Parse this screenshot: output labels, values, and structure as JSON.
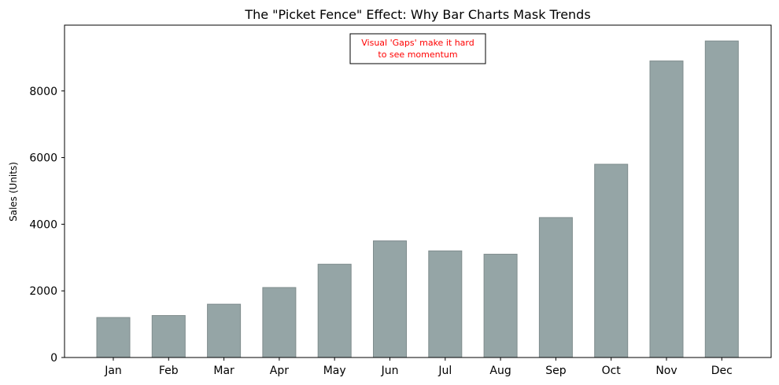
{
  "chart_data": {
    "type": "bar",
    "title": "The \"Picket Fence\" Effect: Why Bar Charts Mask Trends",
    "xlabel": "",
    "ylabel": "Sales (Units)",
    "categories": [
      "Jan",
      "Feb",
      "Mar",
      "Apr",
      "May",
      "Jun",
      "Jul",
      "Aug",
      "Sep",
      "Oct",
      "Nov",
      "Dec"
    ],
    "values": [
      1200,
      1260,
      1600,
      2100,
      2800,
      3500,
      3200,
      3100,
      4200,
      5800,
      8900,
      9500
    ],
    "ylim": [
      0,
      9975
    ],
    "yticks": [
      0,
      2000,
      4000,
      6000,
      8000
    ],
    "grid": false,
    "bar_color": "#95a5a6",
    "bar_edge_color": "#7f8c8d",
    "annotation": {
      "lines": [
        "Visual 'Gaps' make it hard",
        "to see momentum"
      ],
      "color": "#ff0000"
    }
  }
}
